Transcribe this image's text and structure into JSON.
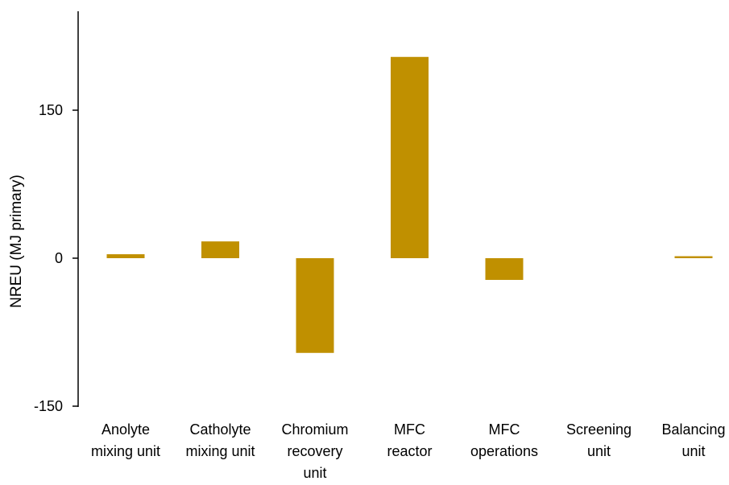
{
  "chart_data": {
    "type": "bar",
    "title": "",
    "xlabel": "",
    "ylabel": "NREU (MJ primary)",
    "ylim": [
      -150,
      150
    ],
    "yticks": [
      -150,
      0,
      150
    ],
    "ytick_labels": [
      "-150",
      "0",
      "150"
    ],
    "grid": false,
    "legend": "none",
    "bar_color": "#C09000",
    "categories": [
      [
        "Anolyte",
        "mixing unit"
      ],
      [
        "Catholyte",
        "mixing unit"
      ],
      [
        "Chromium",
        "recovery",
        "unit"
      ],
      [
        "MFC",
        "reactor"
      ],
      [
        "MFC",
        "operations"
      ],
      [
        "Screening",
        "unit"
      ],
      [
        "Balancing",
        "unit"
      ]
    ],
    "values": [
      4,
      17,
      -96,
      204,
      -22,
      0,
      2
    ]
  }
}
